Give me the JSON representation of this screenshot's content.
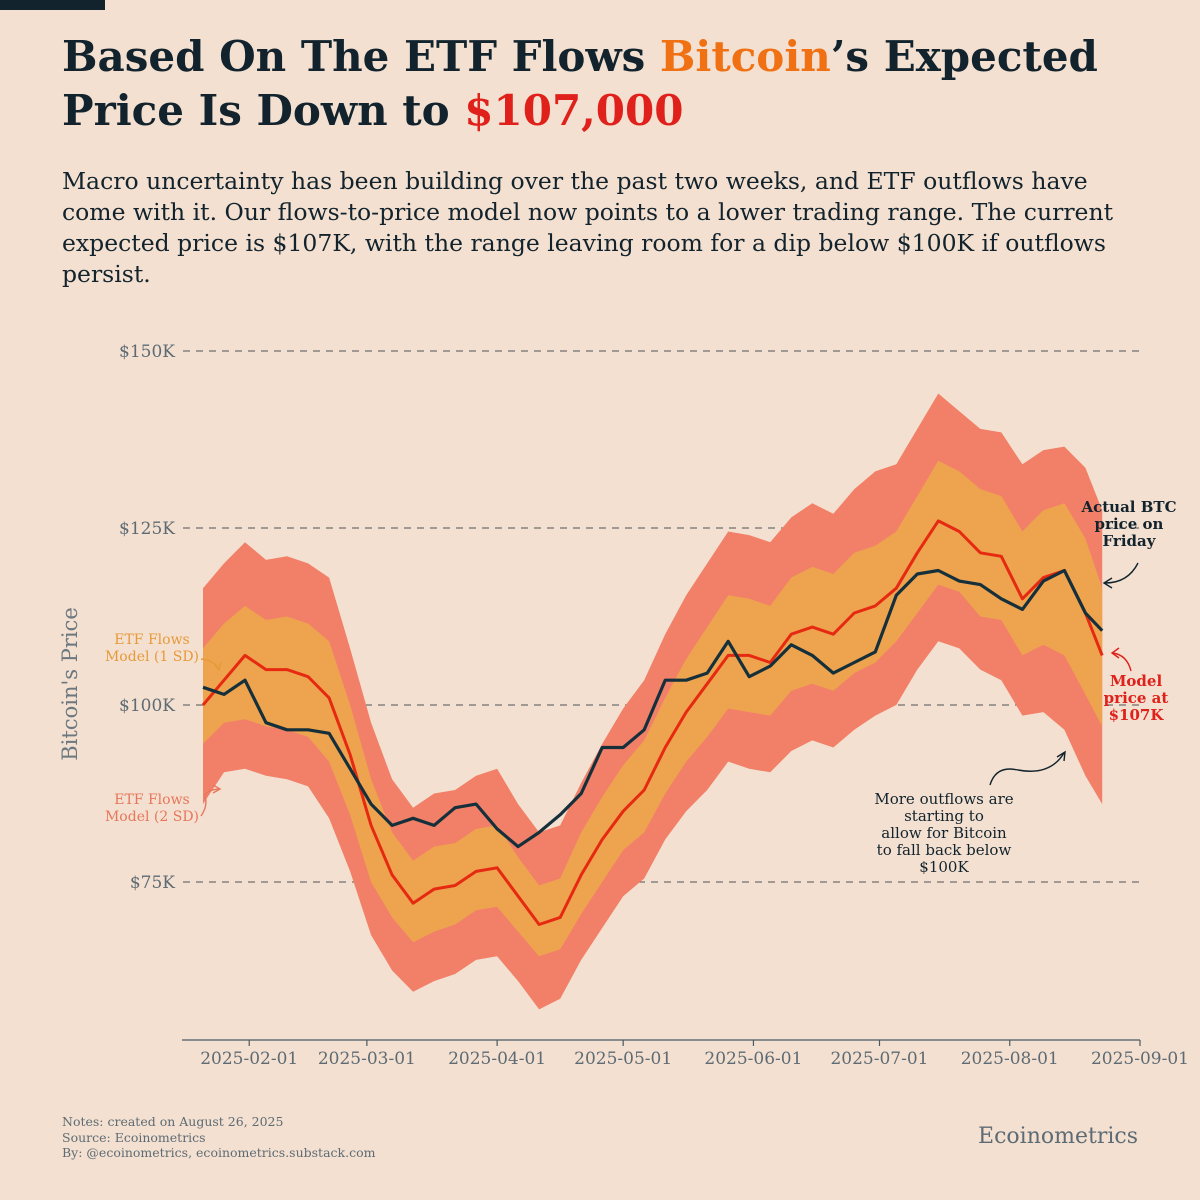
{
  "title": {
    "part1": "Based On The ETF Flows ",
    "highlight1": "Bitcoin",
    "part2": "’s Expected Price Is Down to ",
    "highlight2": "$107,000"
  },
  "subtitle": "Macro uncertainty has been building over the past two weeks, and ETF outflows have come with it. Our flows-to-price model now points to a lower trading range. The current expected price is $107K, with the range leaving room for a dip below $100K if outflows persist.",
  "colors": {
    "background": "#f3e0d0",
    "band_2sd": "#f28068",
    "band_1sd": "#eea44e",
    "model_line": "#e62a12",
    "actual_line": "#15303a",
    "grid": "#707070"
  },
  "notes": {
    "line1": "Notes: created on August 26, 2025",
    "line2": "Source: Ecoinometrics",
    "line3": "By: @ecoinometrics, ecoinometrics.substack.com"
  },
  "brand": "Ecoinometrics",
  "chart_data": {
    "type": "line",
    "ylabel": "Bitcoin's Price",
    "xlabel": "",
    "ylim": [
      53000,
      152000
    ],
    "x_range": [
      "2025-01-16",
      "2025-09-01"
    ],
    "y_ticks": [
      {
        "value": 150000,
        "label": "$150K"
      },
      {
        "value": 125000,
        "label": "$125K"
      },
      {
        "value": 100000,
        "label": "$100K"
      },
      {
        "value": 75000,
        "label": "$75K"
      }
    ],
    "x_ticks": [
      "2025-02-01",
      "2025-03-01",
      "2025-04-01",
      "2025-05-01",
      "2025-06-01",
      "2025-07-01",
      "2025-08-01",
      "2025-09-01"
    ],
    "grid": "horizontal dashed",
    "dates": [
      "2025-01-21",
      "2025-01-26",
      "2025-01-31",
      "2025-02-05",
      "2025-02-10",
      "2025-02-15",
      "2025-02-20",
      "2025-02-25",
      "2025-03-02",
      "2025-03-07",
      "2025-03-12",
      "2025-03-17",
      "2025-03-22",
      "2025-03-27",
      "2025-04-01",
      "2025-04-06",
      "2025-04-11",
      "2025-04-16",
      "2025-04-21",
      "2025-04-26",
      "2025-05-01",
      "2025-05-06",
      "2025-05-11",
      "2025-05-16",
      "2025-05-21",
      "2025-05-26",
      "2025-05-31",
      "2025-06-05",
      "2025-06-10",
      "2025-06-15",
      "2025-06-20",
      "2025-06-25",
      "2025-06-30",
      "2025-07-05",
      "2025-07-10",
      "2025-07-15",
      "2025-07-20",
      "2025-07-25",
      "2025-07-30",
      "2025-08-04",
      "2025-08-09",
      "2025-08-14",
      "2025-08-19",
      "2025-08-23"
    ],
    "series": [
      {
        "name": "",
        "role": "model",
        "values": [
          100000,
          103500,
          107000,
          105000,
          105000,
          104000,
          101000,
          93000,
          83000,
          76000,
          72000,
          74000,
          74500,
          76500,
          77000,
          73000,
          69000,
          70000,
          76000,
          81000,
          85000,
          88000,
          94000,
          99000,
          103000,
          107000,
          107000,
          106000,
          110000,
          111000,
          110000,
          113000,
          114000,
          116500,
          121500,
          126000,
          124500,
          121500,
          121000,
          115000,
          118000,
          119000,
          113000,
          107000
        ]
      },
      {
        "name": "",
        "role": "actual",
        "values": [
          102500,
          101500,
          103500,
          97500,
          96500,
          96500,
          96000,
          91000,
          86000,
          83000,
          84000,
          83000,
          85500,
          86000,
          82500,
          80000,
          82000,
          84500,
          87500,
          94000,
          94000,
          96500,
          103500,
          103500,
          104500,
          109000,
          104000,
          105500,
          108500,
          107000,
          104500,
          106000,
          107500,
          115500,
          118500,
          119000,
          117500,
          117000,
          115000,
          113500,
          117500,
          119000,
          113000,
          110500
        ]
      },
      {
        "name": "ETF Flows Model (1 SD)",
        "role": "band_1sd",
        "lower": [
          94500,
          97500,
          98000,
          97000,
          96500,
          95500,
          92000,
          84500,
          75000,
          70000,
          66500,
          68000,
          69000,
          71000,
          71500,
          68000,
          64500,
          65500,
          70500,
          75000,
          79500,
          82000,
          87500,
          92000,
          95500,
          99500,
          99000,
          98500,
          102000,
          103000,
          102000,
          104500,
          106000,
          109000,
          113000,
          117000,
          116000,
          112500,
          112000,
          107000,
          108500,
          107000,
          101500,
          97000
        ],
        "upper": [
          108000,
          111500,
          114000,
          112000,
          112500,
          111500,
          109000,
          100000,
          89500,
          82000,
          78000,
          80000,
          80500,
          82500,
          83000,
          78500,
          74500,
          75500,
          82000,
          87000,
          91500,
          95000,
          101000,
          106500,
          111000,
          115500,
          115000,
          114000,
          118000,
          119500,
          118500,
          121500,
          122500,
          124500,
          129500,
          134500,
          133000,
          130500,
          129500,
          124500,
          127500,
          128500,
          123500,
          116500
        ]
      },
      {
        "name": "ETF Flows Model (2 SD)",
        "role": "band_2sd",
        "lower": [
          86000,
          90500,
          91000,
          90000,
          89500,
          88500,
          84000,
          76500,
          67500,
          62500,
          59500,
          61000,
          62000,
          64000,
          64500,
          61000,
          57000,
          58500,
          64000,
          68500,
          73000,
          75500,
          81000,
          85000,
          88000,
          92000,
          91000,
          90500,
          93500,
          95000,
          94000,
          96500,
          98500,
          100000,
          105000,
          109000,
          108000,
          105000,
          103500,
          98500,
          99000,
          96500,
          90000,
          86000
        ],
        "upper": [
          116500,
          120000,
          123000,
          120500,
          121000,
          120000,
          118000,
          108000,
          97500,
          89500,
          85500,
          87500,
          88000,
          90000,
          91000,
          86000,
          82000,
          83000,
          89000,
          94500,
          99500,
          103500,
          110000,
          115500,
          120000,
          124500,
          124000,
          123000,
          126500,
          128500,
          127000,
          130500,
          133000,
          134000,
          139000,
          144000,
          141500,
          139000,
          138500,
          134000,
          136000,
          136500,
          133500,
          127500
        ]
      }
    ],
    "annotations": [
      {
        "key": "actual_friday",
        "text": [
          "Actual BTC",
          "price on",
          "Friday"
        ]
      },
      {
        "key": "model_price",
        "text": [
          "Model",
          "price at",
          "$107K"
        ]
      },
      {
        "key": "outflows",
        "text": [
          "More outflows are",
          "starting to",
          "allow for Bitcoin",
          "to fall back below",
          "$100K"
        ]
      },
      {
        "key": "label_1sd",
        "text": [
          "ETF Flows",
          "Model (1 SD)"
        ]
      },
      {
        "key": "label_2sd",
        "text": [
          "ETF Flows",
          "Model (2 SD)"
        ]
      }
    ]
  }
}
